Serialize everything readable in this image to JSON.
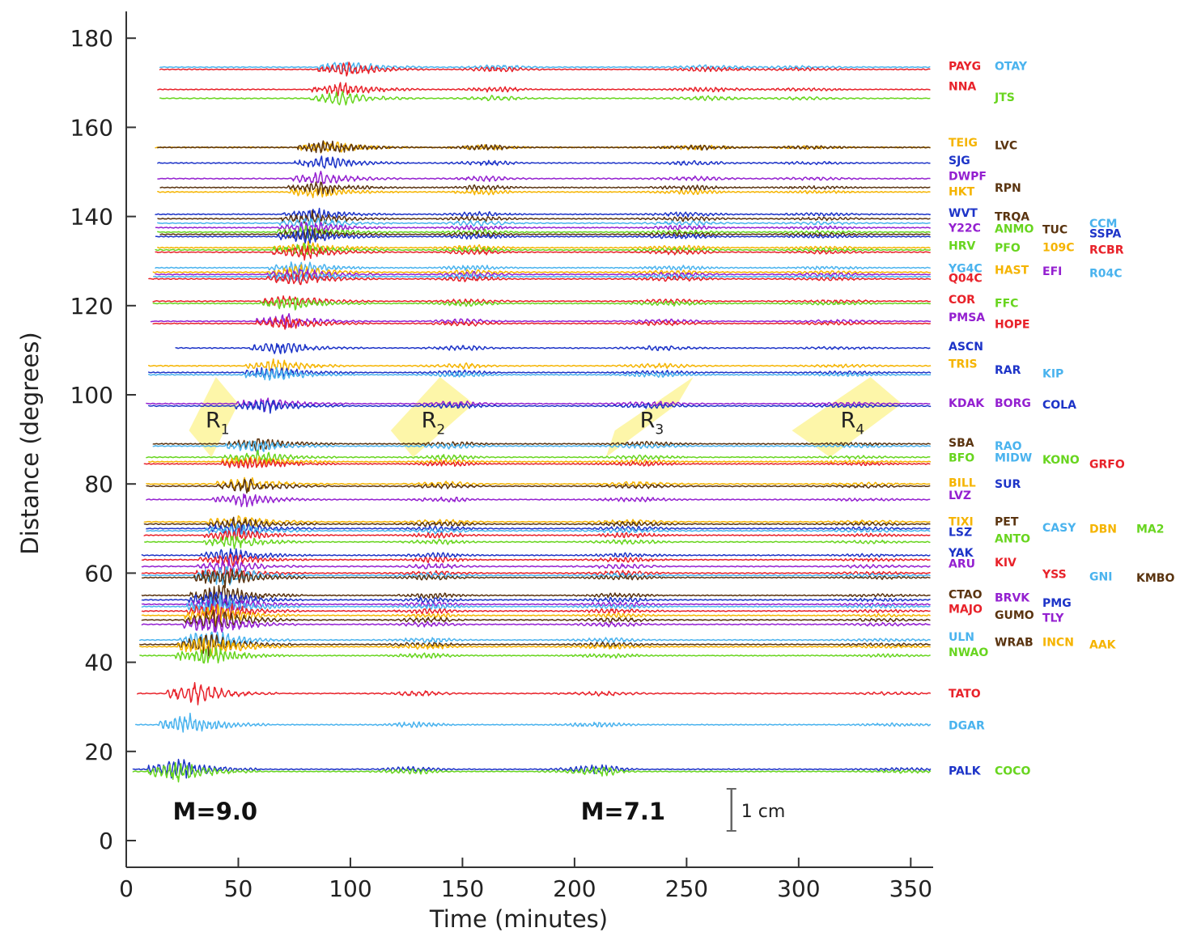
{
  "chart_data": {
    "type": "line",
    "xlabel": "Time (minutes)",
    "ylabel": "Distance (degrees)",
    "xlim": [
      0,
      360
    ],
    "ylim": [
      -6,
      186
    ],
    "xticks": [
      0,
      50,
      100,
      150,
      200,
      250,
      300,
      350
    ],
    "yticks": [
      0,
      20,
      40,
      60,
      80,
      100,
      120,
      140,
      160,
      180
    ],
    "grid": false,
    "colors": {
      "red": "#e8222a",
      "blue": "#1d34c8",
      "lightblue": "#4ab3ee",
      "green": "#68d51f",
      "orange": "#f5b400",
      "brown": "#5a3410",
      "purple": "#9420d0",
      "highlight": "#fdf59a"
    },
    "traces": [
      {
        "d": 173.5,
        "color": "lightblue",
        "start": 15
      },
      {
        "d": 173.0,
        "color": "red",
        "start": 15
      },
      {
        "d": 168.5,
        "color": "red",
        "start": 14
      },
      {
        "d": 166.5,
        "color": "green",
        "start": 15
      },
      {
        "d": 155.5,
        "color": "orange",
        "start": 13
      },
      {
        "d": 155.5,
        "color": "brown",
        "start": 14
      },
      {
        "d": 152.0,
        "color": "blue",
        "start": 14
      },
      {
        "d": 148.5,
        "color": "purple",
        "start": 14
      },
      {
        "d": 145.5,
        "color": "orange",
        "start": 14
      },
      {
        "d": 146.5,
        "color": "brown",
        "start": 15
      },
      {
        "d": 140.5,
        "color": "blue",
        "start": 13
      },
      {
        "d": 139.5,
        "color": "brown",
        "start": 14
      },
      {
        "d": 138.5,
        "color": "lightblue",
        "start": 14
      },
      {
        "d": 137.5,
        "color": "purple",
        "start": 13
      },
      {
        "d": 136.5,
        "color": "green",
        "start": 14
      },
      {
        "d": 136.0,
        "color": "brown",
        "start": 15
      },
      {
        "d": 135.5,
        "color": "blue",
        "start": 13
      },
      {
        "d": 133.0,
        "color": "orange",
        "start": 14
      },
      {
        "d": 132.5,
        "color": "green",
        "start": 13
      },
      {
        "d": 132.0,
        "color": "red",
        "start": 13
      },
      {
        "d": 128.5,
        "color": "lightblue",
        "start": 13
      },
      {
        "d": 127.5,
        "color": "orange",
        "start": 12
      },
      {
        "d": 127.0,
        "color": "purple",
        "start": 13
      },
      {
        "d": 126.5,
        "color": "lightblue",
        "start": 12
      },
      {
        "d": 126.0,
        "color": "red",
        "start": 10
      },
      {
        "d": 121.0,
        "color": "red",
        "start": 12
      },
      {
        "d": 120.5,
        "color": "green",
        "start": 12
      },
      {
        "d": 116.5,
        "color": "purple",
        "start": 11
      },
      {
        "d": 116.0,
        "color": "red",
        "start": 12
      },
      {
        "d": 110.5,
        "color": "blue",
        "start": 22
      },
      {
        "d": 106.5,
        "color": "orange",
        "start": 10
      },
      {
        "d": 105.0,
        "color": "blue",
        "start": 10
      },
      {
        "d": 104.5,
        "color": "lightblue",
        "start": 10
      },
      {
        "d": 98.0,
        "color": "purple",
        "start": 9
      },
      {
        "d": 97.5,
        "color": "blue",
        "start": 10
      },
      {
        "d": 89.0,
        "color": "brown",
        "start": 12
      },
      {
        "d": 88.5,
        "color": "lightblue",
        "start": 12
      },
      {
        "d": 86.0,
        "color": "green",
        "start": 9
      },
      {
        "d": 85.0,
        "color": "orange",
        "start": 10
      },
      {
        "d": 84.5,
        "color": "red",
        "start": 8
      },
      {
        "d": 80.0,
        "color": "orange",
        "start": 9
      },
      {
        "d": 79.5,
        "color": "brown",
        "start": 9
      },
      {
        "d": 76.5,
        "color": "purple",
        "start": 9
      },
      {
        "d": 71.5,
        "color": "orange",
        "start": 8
      },
      {
        "d": 71.0,
        "color": "brown",
        "start": 8
      },
      {
        "d": 70.0,
        "color": "blue",
        "start": 9
      },
      {
        "d": 69.5,
        "color": "lightblue",
        "start": 9
      },
      {
        "d": 68.5,
        "color": "red",
        "start": 8
      },
      {
        "d": 67.0,
        "color": "green",
        "start": 8
      },
      {
        "d": 64.0,
        "color": "blue",
        "start": 7
      },
      {
        "d": 63.0,
        "color": "red",
        "start": 7
      },
      {
        "d": 61.5,
        "color": "purple",
        "start": 7
      },
      {
        "d": 60.0,
        "color": "red",
        "start": 7
      },
      {
        "d": 59.5,
        "color": "lightblue",
        "start": 7
      },
      {
        "d": 59.0,
        "color": "brown",
        "start": 7
      },
      {
        "d": 55.0,
        "color": "brown",
        "start": 7
      },
      {
        "d": 54.0,
        "color": "blue",
        "start": 7
      },
      {
        "d": 53.0,
        "color": "purple",
        "start": 7
      },
      {
        "d": 52.5,
        "color": "lightblue",
        "start": 7
      },
      {
        "d": 51.5,
        "color": "red",
        "start": 7
      },
      {
        "d": 50.5,
        "color": "orange",
        "start": 7
      },
      {
        "d": 49.5,
        "color": "brown",
        "start": 7
      },
      {
        "d": 48.5,
        "color": "purple",
        "start": 7
      },
      {
        "d": 45.0,
        "color": "lightblue",
        "start": 6
      },
      {
        "d": 44.0,
        "color": "brown",
        "start": 6
      },
      {
        "d": 43.5,
        "color": "orange",
        "start": 6
      },
      {
        "d": 41.5,
        "color": "green",
        "start": 6
      },
      {
        "d": 33.0,
        "color": "red",
        "start": 5
      },
      {
        "d": 26.0,
        "color": "lightblue",
        "start": 4
      },
      {
        "d": 16.0,
        "color": "blue",
        "start": 3
      },
      {
        "d": 15.5,
        "color": "green",
        "start": 3
      }
    ],
    "rayleigh_bands": [
      {
        "label": "R",
        "sub": "1",
        "x": [
          [
            28,
            92
          ],
          [
            40,
            104
          ],
          [
            50,
            98
          ],
          [
            38,
            86
          ]
        ]
      },
      {
        "label": "R",
        "sub": "2",
        "x": [
          [
            118,
            92
          ],
          [
            140,
            104
          ],
          [
            155,
            98
          ],
          [
            128,
            86
          ]
        ]
      },
      {
        "label": "R",
        "sub": "3",
        "x": [
          [
            218,
            92
          ],
          [
            253,
            104
          ],
          [
            246,
            98
          ],
          [
            214,
            86
          ]
        ]
      },
      {
        "label": "R",
        "sub": "4",
        "x": [
          [
            297,
            92
          ],
          [
            332,
            104
          ],
          [
            346,
            98
          ],
          [
            314,
            86
          ]
        ]
      }
    ],
    "annotations": [
      {
        "text": "M=9.0",
        "x": 28,
        "y": 6.5
      },
      {
        "text": "M=7.1",
        "x": 210,
        "y": 6.5
      }
    ],
    "scale_bar": {
      "label": "1 cm"
    },
    "station_labels": [
      {
        "text": "PAYG",
        "color": "red",
        "col": 0,
        "d": 173.8
      },
      {
        "text": "OTAY",
        "color": "lightblue",
        "col": 1,
        "d": 173.8
      },
      {
        "text": "NNA",
        "color": "red",
        "col": 0,
        "d": 169.2
      },
      {
        "text": "JTS",
        "color": "green",
        "col": 1,
        "d": 166.8
      },
      {
        "text": "TEIG",
        "color": "orange",
        "col": 0,
        "d": 156.6
      },
      {
        "text": "LVC",
        "color": "brown",
        "col": 1,
        "d": 156.0
      },
      {
        "text": "SJG",
        "color": "blue",
        "col": 0,
        "d": 152.6
      },
      {
        "text": "DWPF",
        "color": "purple",
        "col": 0,
        "d": 149.1
      },
      {
        "text": "RPN",
        "color": "brown",
        "col": 1,
        "d": 146.5
      },
      {
        "text": "HKT",
        "color": "orange",
        "col": 0,
        "d": 145.6
      },
      {
        "text": "WVT",
        "color": "blue",
        "col": 0,
        "d": 140.8
      },
      {
        "text": "TRQA",
        "color": "brown",
        "col": 1,
        "d": 140.0
      },
      {
        "text": "Y22C",
        "color": "purple",
        "col": 0,
        "d": 137.5
      },
      {
        "text": "ANMO",
        "color": "green",
        "col": 1,
        "d": 137.3
      },
      {
        "text": "TUC",
        "color": "brown",
        "col": 2,
        "d": 137.1
      },
      {
        "text": "CCM",
        "color": "lightblue",
        "col": 3,
        "d": 138.5
      },
      {
        "text": "SSPA",
        "color": "blue",
        "col": 3,
        "d": 136.2
      },
      {
        "text": "HRV",
        "color": "green",
        "col": 0,
        "d": 133.5
      },
      {
        "text": "PFO",
        "color": "green",
        "col": 1,
        "d": 133.0
      },
      {
        "text": "109C",
        "color": "orange",
        "col": 2,
        "d": 133.1
      },
      {
        "text": "RCBR",
        "color": "red",
        "col": 3,
        "d": 132.6
      },
      {
        "text": "YG4C",
        "color": "lightblue",
        "col": 0,
        "d": 128.4
      },
      {
        "text": "HAST",
        "color": "orange",
        "col": 1,
        "d": 128.0
      },
      {
        "text": "EFI",
        "color": "purple",
        "col": 2,
        "d": 127.8
      },
      {
        "text": "Q04C",
        "color": "red",
        "col": 0,
        "d": 126.2
      },
      {
        "text": "R04C",
        "color": "lightblue",
        "col": 3,
        "d": 127.3
      },
      {
        "text": "COR",
        "color": "red",
        "col": 0,
        "d": 121.4
      },
      {
        "text": "FFC",
        "color": "green",
        "col": 1,
        "d": 120.6
      },
      {
        "text": "PMSA",
        "color": "purple",
        "col": 0,
        "d": 117.4
      },
      {
        "text": "HOPE",
        "color": "red",
        "col": 1,
        "d": 115.9
      },
      {
        "text": "ASCN",
        "color": "blue",
        "col": 0,
        "d": 110.9
      },
      {
        "text": "TRIS",
        "color": "orange",
        "col": 0,
        "d": 107.0
      },
      {
        "text": "RAR",
        "color": "blue",
        "col": 1,
        "d": 105.6
      },
      {
        "text": "KIP",
        "color": "lightblue",
        "col": 2,
        "d": 104.8
      },
      {
        "text": "KDAK",
        "color": "purple",
        "col": 0,
        "d": 98.2
      },
      {
        "text": "BORG",
        "color": "purple",
        "col": 1,
        "d": 98.2
      },
      {
        "text": "COLA",
        "color": "blue",
        "col": 2,
        "d": 97.8
      },
      {
        "text": "SBA",
        "color": "brown",
        "col": 0,
        "d": 89.3
      },
      {
        "text": "RAO",
        "color": "lightblue",
        "col": 1,
        "d": 88.6
      },
      {
        "text": "BFO",
        "color": "green",
        "col": 0,
        "d": 85.9
      },
      {
        "text": "MIDW",
        "color": "lightblue",
        "col": 1,
        "d": 85.9
      },
      {
        "text": "KONO",
        "color": "green",
        "col": 2,
        "d": 85.5
      },
      {
        "text": "GRFO",
        "color": "red",
        "col": 3,
        "d": 84.5
      },
      {
        "text": "BILL",
        "color": "orange",
        "col": 0,
        "d": 80.3
      },
      {
        "text": "SUR",
        "color": "blue",
        "col": 1,
        "d": 80.0
      },
      {
        "text": "LVZ",
        "color": "purple",
        "col": 0,
        "d": 77.5
      },
      {
        "text": "TIXI",
        "color": "orange",
        "col": 0,
        "d": 71.6
      },
      {
        "text": "PET",
        "color": "brown",
        "col": 1,
        "d": 71.6
      },
      {
        "text": "CASY",
        "color": "lightblue",
        "col": 2,
        "d": 70.2
      },
      {
        "text": "DBN",
        "color": "orange",
        "col": 3,
        "d": 70.0
      },
      {
        "text": "MA2",
        "color": "green",
        "col": 4,
        "d": 70.0
      },
      {
        "text": "LSZ",
        "color": "blue",
        "col": 0,
        "d": 69.2
      },
      {
        "text": "ANTO",
        "color": "green",
        "col": 1,
        "d": 67.8
      },
      {
        "text": "YAK",
        "color": "blue",
        "col": 0,
        "d": 64.6
      },
      {
        "text": "KIV",
        "color": "red",
        "col": 1,
        "d": 62.4
      },
      {
        "text": "ARU",
        "color": "purple",
        "col": 0,
        "d": 62.2
      },
      {
        "text": "YSS",
        "color": "red",
        "col": 2,
        "d": 59.8
      },
      {
        "text": "GNI",
        "color": "lightblue",
        "col": 3,
        "d": 59.3
      },
      {
        "text": "KMBO",
        "color": "brown",
        "col": 4,
        "d": 59.0
      },
      {
        "text": "CTAO",
        "color": "brown",
        "col": 0,
        "d": 55.3
      },
      {
        "text": "BRVK",
        "color": "purple",
        "col": 1,
        "d": 54.5
      },
      {
        "text": "PMG",
        "color": "blue",
        "col": 2,
        "d": 53.4
      },
      {
        "text": "MAJO",
        "color": "red",
        "col": 0,
        "d": 52.0
      },
      {
        "text": "GUMO",
        "color": "brown",
        "col": 1,
        "d": 50.6
      },
      {
        "text": "TLY",
        "color": "purple",
        "col": 2,
        "d": 50.0
      },
      {
        "text": "ULN",
        "color": "lightblue",
        "col": 0,
        "d": 45.7
      },
      {
        "text": "WRAB",
        "color": "brown",
        "col": 1,
        "d": 44.6
      },
      {
        "text": "INCN",
        "color": "orange",
        "col": 2,
        "d": 44.6
      },
      {
        "text": "AAK",
        "color": "orange",
        "col": 3,
        "d": 44.0
      },
      {
        "text": "NWAO",
        "color": "green",
        "col": 0,
        "d": 42.3
      },
      {
        "text": "TATO",
        "color": "red",
        "col": 0,
        "d": 33.0
      },
      {
        "text": "DGAR",
        "color": "lightblue",
        "col": 0,
        "d": 25.9
      },
      {
        "text": "PALK",
        "color": "blue",
        "col": 0,
        "d": 15.7
      },
      {
        "text": "COCO",
        "color": "green",
        "col": 1,
        "d": 15.7
      }
    ]
  }
}
